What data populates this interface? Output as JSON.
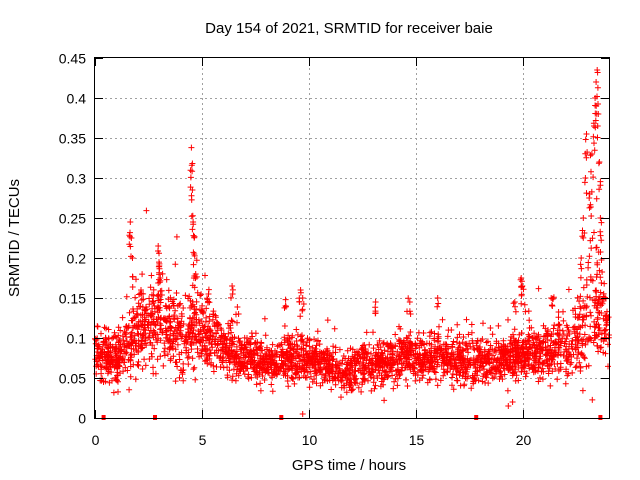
{
  "chart_data": {
    "type": "scatter",
    "title": "Day 154 of 2021, SRMTID for receiver baie",
    "xlabel": "GPS time / hours",
    "ylabel": "SRMTID / TECUs",
    "xlim": [
      0,
      24
    ],
    "ylim": [
      0,
      0.45
    ],
    "xticks": [
      0,
      5,
      10,
      15,
      20
    ],
    "xtick_labels": [
      "0",
      "5",
      "10",
      "15",
      "20"
    ],
    "yticks": [
      0,
      0.05,
      0.1,
      0.15,
      0.2,
      0.25,
      0.3,
      0.35,
      0.4,
      0.45
    ],
    "ytick_labels": [
      "0",
      "0.05",
      "0.1",
      "0.15",
      "0.2",
      "0.25",
      "0.3",
      "0.35",
      "0.4",
      "0.45"
    ],
    "grid": true,
    "marker": "plus",
    "color": "#ff0000",
    "point_count_approx": 3000,
    "profile": {
      "x": [
        0,
        1,
        1.6,
        2.2,
        3,
        3.5,
        4.2,
        4.6,
        5,
        5.5,
        6.5,
        7.5,
        8.5,
        9.5,
        10.5,
        11.5,
        12.5,
        13.5,
        14.5,
        15.5,
        16.5,
        17.5,
        18.5,
        19.5,
        20.5,
        21.5,
        22.3,
        22.8,
        23.2,
        23.6,
        24
      ],
      "median": [
        0.085,
        0.07,
        0.09,
        0.11,
        0.12,
        0.11,
        0.1,
        0.11,
        0.1,
        0.095,
        0.08,
        0.07,
        0.07,
        0.075,
        0.07,
        0.055,
        0.065,
        0.07,
        0.075,
        0.075,
        0.07,
        0.07,
        0.07,
        0.075,
        0.08,
        0.085,
        0.09,
        0.11,
        0.16,
        0.13,
        0.1
      ],
      "spread": [
        0.02,
        0.025,
        0.03,
        0.035,
        0.035,
        0.035,
        0.035,
        0.035,
        0.025,
        0.025,
        0.02,
        0.02,
        0.02,
        0.02,
        0.02,
        0.018,
        0.02,
        0.02,
        0.02,
        0.02,
        0.02,
        0.02,
        0.02,
        0.02,
        0.022,
        0.025,
        0.03,
        0.045,
        0.07,
        0.045,
        0.02
      ]
    },
    "peaks": [
      {
        "x": 1.65,
        "y": 0.245
      },
      {
        "x": 1.7,
        "y": 0.225
      },
      {
        "x": 1.75,
        "y": 0.2
      },
      {
        "x": 2.15,
        "y": 0.16
      },
      {
        "x": 2.95,
        "y": 0.215
      },
      {
        "x": 3.0,
        "y": 0.19
      },
      {
        "x": 3.05,
        "y": 0.175
      },
      {
        "x": 4.4,
        "y": 0.152
      },
      {
        "x": 4.5,
        "y": 0.338
      },
      {
        "x": 4.52,
        "y": 0.316
      },
      {
        "x": 4.55,
        "y": 0.285
      },
      {
        "x": 4.58,
        "y": 0.245
      },
      {
        "x": 4.6,
        "y": 0.228
      },
      {
        "x": 4.63,
        "y": 0.205
      },
      {
        "x": 4.7,
        "y": 0.18
      },
      {
        "x": 5.3,
        "y": 0.155
      },
      {
        "x": 6.4,
        "y": 0.165
      },
      {
        "x": 8.9,
        "y": 0.148
      },
      {
        "x": 9.6,
        "y": 0.16
      },
      {
        "x": 9.7,
        "y": 0.15
      },
      {
        "x": 13.1,
        "y": 0.145
      },
      {
        "x": 14.7,
        "y": 0.145
      },
      {
        "x": 16.0,
        "y": 0.15
      },
      {
        "x": 19.6,
        "y": 0.145
      },
      {
        "x": 19.9,
        "y": 0.175
      },
      {
        "x": 19.95,
        "y": 0.165
      },
      {
        "x": 21.3,
        "y": 0.15
      },
      {
        "x": 22.7,
        "y": 0.2
      },
      {
        "x": 22.8,
        "y": 0.25
      },
      {
        "x": 22.9,
        "y": 0.3
      },
      {
        "x": 22.95,
        "y": 0.355
      },
      {
        "x": 23.1,
        "y": 0.28
      },
      {
        "x": 23.2,
        "y": 0.33
      },
      {
        "x": 23.3,
        "y": 0.365
      },
      {
        "x": 23.35,
        "y": 0.4
      },
      {
        "x": 23.4,
        "y": 0.42
      },
      {
        "x": 23.45,
        "y": 0.435
      },
      {
        "x": 23.5,
        "y": 0.38
      },
      {
        "x": 23.55,
        "y": 0.32
      },
      {
        "x": 23.6,
        "y": 0.25
      }
    ],
    "lows": [
      {
        "x": 9.7,
        "y": 0.005
      },
      {
        "x": 19.3,
        "y": 0.015
      },
      {
        "x": 19.5,
        "y": 0.02
      },
      {
        "x": 13.5,
        "y": 0.022
      }
    ],
    "gap_markers_x": [
      0.4,
      2.8,
      8.7,
      17.8,
      23.6
    ]
  }
}
